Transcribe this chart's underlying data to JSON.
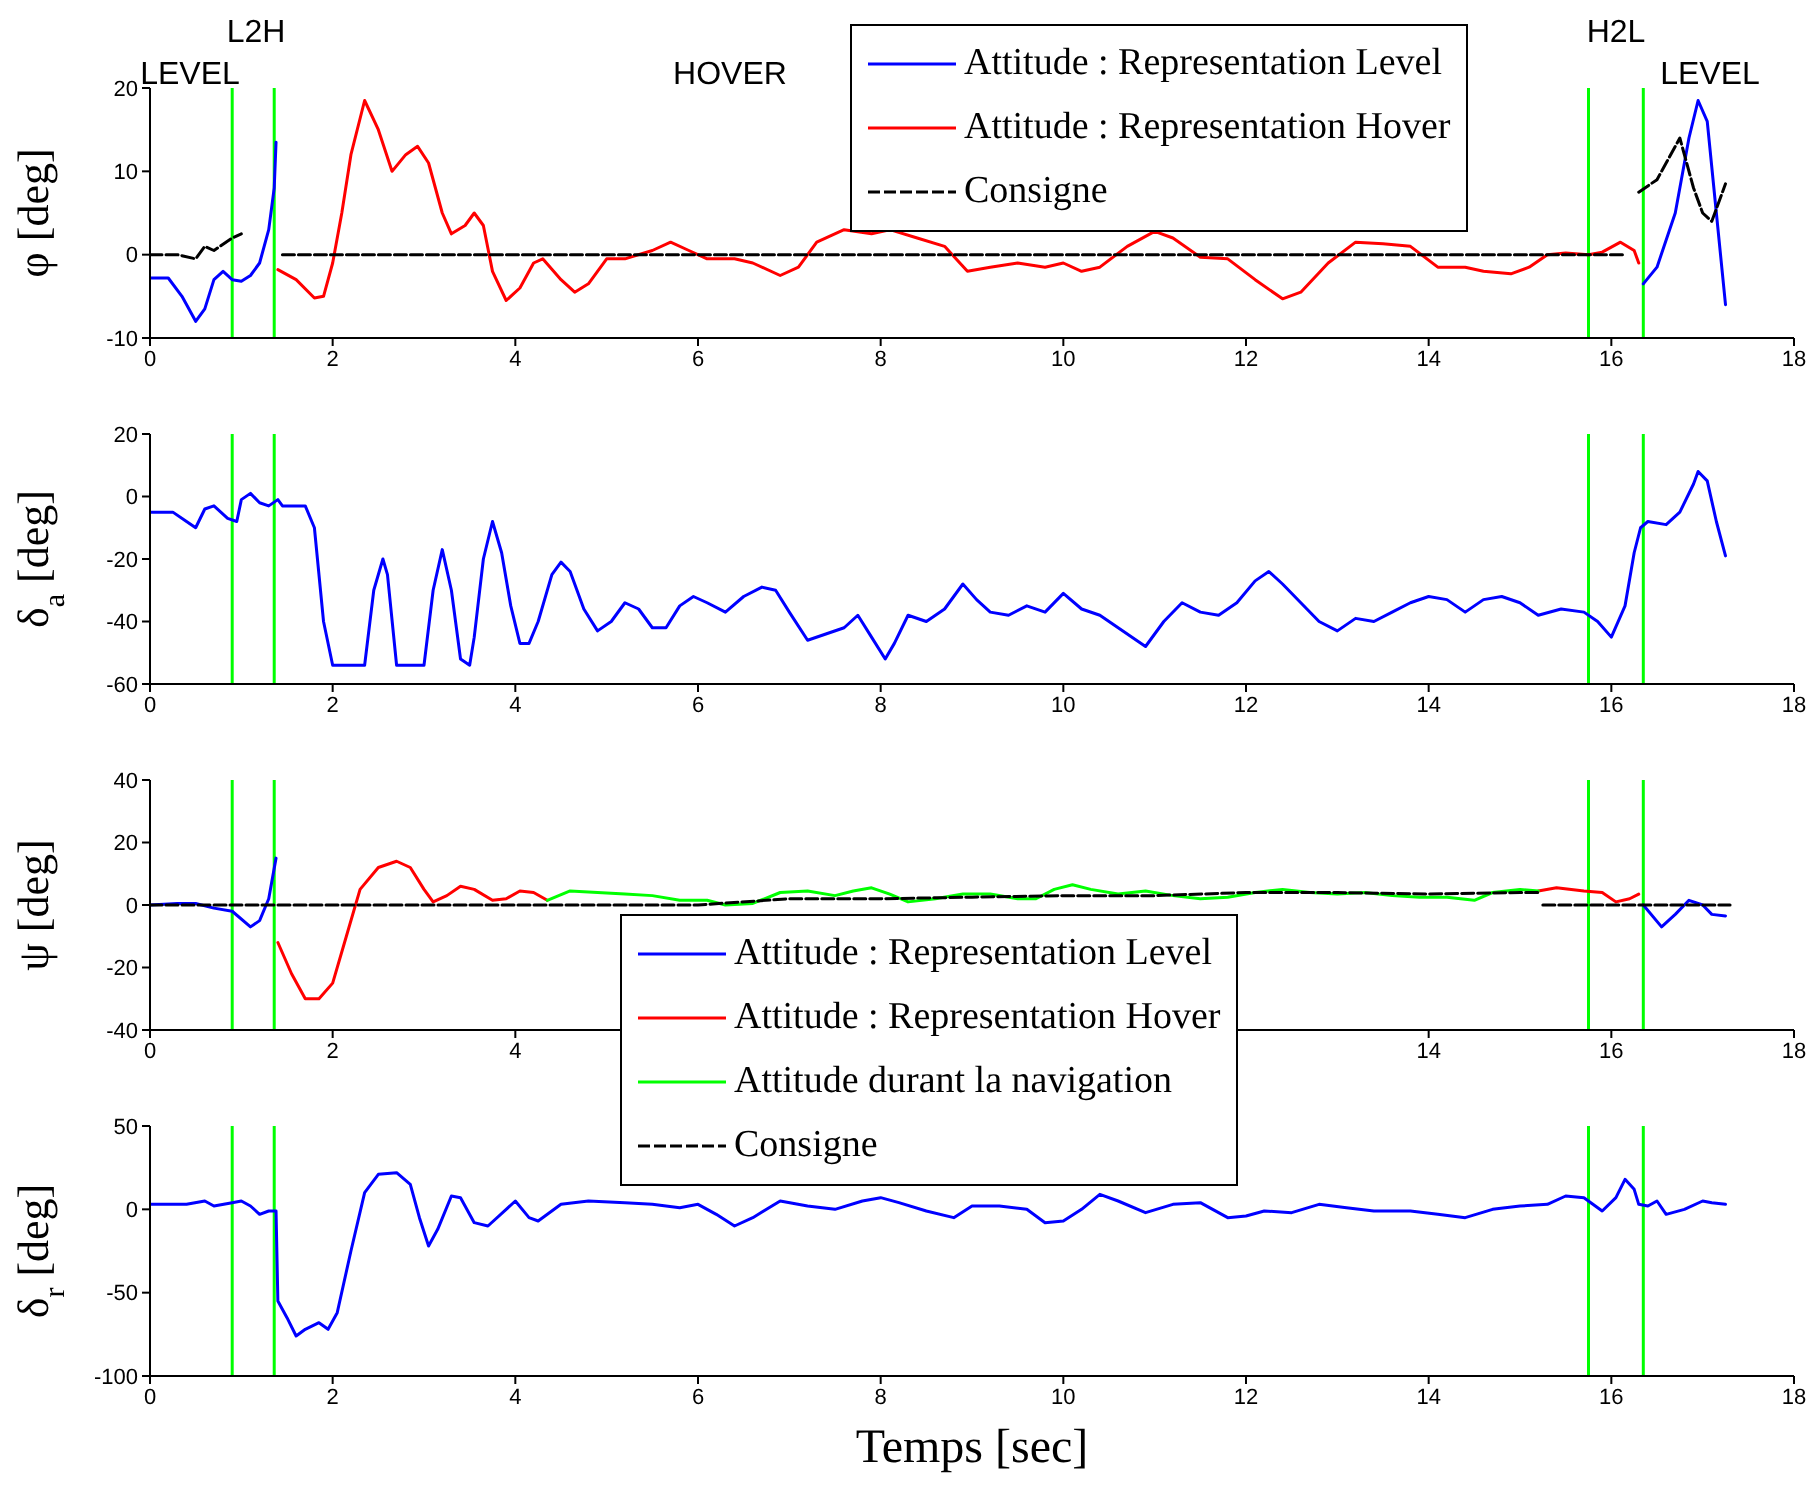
{
  "chart_data": [
    {
      "type": "line",
      "ylabel": "φ [deg]",
      "xlim": [
        0,
        18
      ],
      "xticks": [
        0,
        2,
        4,
        6,
        8,
        10,
        12,
        14,
        16,
        18
      ],
      "ylim": [
        -10,
        20
      ],
      "yticks": [
        -10,
        0,
        10,
        20
      ],
      "legend": "top right",
      "annotations": [
        "LEVEL",
        "L2H",
        "HOVER",
        "H2L",
        "LEVEL"
      ],
      "ref_lines": [
        {
          "axis": "x",
          "value": 0.9,
          "color": "#00ff00"
        },
        {
          "axis": "x",
          "value": 1.36,
          "color": "#00ff00"
        },
        {
          "axis": "x",
          "value": 15.75,
          "color": "#00ff00"
        },
        {
          "axis": "x",
          "value": 16.35,
          "color": "#00ff00"
        }
      ],
      "series": [
        {
          "name": "Attitude : Representation Level",
          "color": "#0000ff",
          "x": [
            0,
            0.2,
            0.35,
            0.5,
            0.6,
            0.7,
            0.8,
            0.9,
            1.0,
            1.1,
            1.2,
            1.3,
            1.36,
            1.38,
            8,
            16.35,
            16.5,
            16.7,
            16.85,
            16.95,
            17.05,
            17.15,
            17.25
          ],
          "values": [
            -2.8,
            -2.8,
            -5,
            -8,
            -6.5,
            -3,
            -2,
            -3,
            -3.2,
            -2.5,
            -1,
            3,
            8,
            13.5,
            null,
            -3.5,
            -1.5,
            5,
            14,
            18.5,
            16,
            5,
            -6
          ]
        },
        {
          "name": "Attitude : Representation Hover",
          "color": "#ff0000",
          "x": [
            1.4,
            1.6,
            1.8,
            1.9,
            2.0,
            2.1,
            2.2,
            2.35,
            2.5,
            2.65,
            2.8,
            2.93,
            3.05,
            3.2,
            3.3,
            3.45,
            3.55,
            3.65,
            3.75,
            3.9,
            4.05,
            4.2,
            4.3,
            4.5,
            4.65,
            4.8,
            5.0,
            5.2,
            5.5,
            5.7,
            5.9,
            6.1,
            6.4,
            6.6,
            6.9,
            7.1,
            7.3,
            7.6,
            7.9,
            8.1,
            8.4,
            8.7,
            8.95,
            9.2,
            9.5,
            9.8,
            10,
            10.2,
            10.4,
            10.7,
            11,
            11.2,
            11.5,
            11.8,
            12.1,
            12.4,
            12.6,
            12.9,
            13.2,
            13.5,
            13.8,
            14.1,
            14.4,
            14.6,
            14.9,
            15.1,
            15.3,
            15.5,
            15.75,
            15.9,
            16.1,
            16.25,
            16.3
          ],
          "values": [
            -1.8,
            -3,
            -5.2,
            -5,
            -1,
            5,
            12,
            18.5,
            15,
            10,
            12,
            13,
            11,
            5,
            2.5,
            3.5,
            5,
            3.5,
            -2,
            -5.5,
            -4,
            -1,
            -0.5,
            -3,
            -4.5,
            -3.5,
            -0.5,
            -0.5,
            0.5,
            1.5,
            0.5,
            -0.5,
            -0.5,
            -1,
            -2.5,
            -1.5,
            1.5,
            3,
            2.5,
            3,
            2,
            1,
            -2,
            -1.5,
            -1,
            -1.5,
            -1,
            -2,
            -1.5,
            1,
            2.8,
            2,
            -0.3,
            -0.5,
            -3,
            -5.3,
            -4.5,
            -1,
            1.5,
            1.3,
            1,
            -1.5,
            -1.5,
            -2,
            -2.3,
            -1.5,
            0,
            0.2,
            0,
            0.3,
            1.5,
            0.5,
            -1
          ]
        },
        {
          "name": "Consigne",
          "color": "#000000",
          "line_style": "dashed",
          "x": [
            0,
            0.3,
            0.5,
            0.6,
            0.7,
            0.9,
            1.0,
            1.2,
            1.45,
            4,
            8,
            12,
            16.15,
            16.25,
            16.3,
            16.5,
            16.6,
            16.75,
            16.9,
            17,
            17.1,
            17.25
          ],
          "values": [
            0,
            0,
            -0.5,
            1,
            0.5,
            2,
            2.5,
            null,
            0,
            0,
            0,
            0,
            0,
            null,
            7.5,
            9,
            11,
            14,
            8,
            5,
            4,
            8.5
          ]
        }
      ]
    },
    {
      "type": "line",
      "ylabel": "δ$_{a}$ [deg]",
      "xlim": [
        0,
        18
      ],
      "xticks": [
        0,
        2,
        4,
        6,
        8,
        10,
        12,
        14,
        16,
        18
      ],
      "ylim": [
        -60,
        20
      ],
      "yticks": [
        -60,
        -40,
        -20,
        0,
        20
      ],
      "ref_lines": [
        {
          "axis": "x",
          "value": 0.9,
          "color": "#00ff00"
        },
        {
          "axis": "x",
          "value": 1.36,
          "color": "#00ff00"
        },
        {
          "axis": "x",
          "value": 15.75,
          "color": "#00ff00"
        },
        {
          "axis": "x",
          "value": 16.35,
          "color": "#00ff00"
        }
      ],
      "series": [
        {
          "color": "#0000ff",
          "x": [
            0,
            0.25,
            0.4,
            0.5,
            0.6,
            0.7,
            0.85,
            0.95,
            1.0,
            1.1,
            1.2,
            1.3,
            1.4,
            1.45,
            1.7,
            1.8,
            1.9,
            2.0,
            2.35,
            2.45,
            2.55,
            2.6,
            2.7,
            3.0,
            3.1,
            3.2,
            3.3,
            3.4,
            3.5,
            3.55,
            3.65,
            3.75,
            3.85,
            3.95,
            4.05,
            4.15,
            4.25,
            4.4,
            4.5,
            4.6,
            4.75,
            4.9,
            5.05,
            5.2,
            5.35,
            5.5,
            5.65,
            5.8,
            5.95,
            6.1,
            6.3,
            6.5,
            6.7,
            6.85,
            7.0,
            7.2,
            7.4,
            7.6,
            7.75,
            7.9,
            8.05,
            8.15,
            8.3,
            8.5,
            8.7,
            8.9,
            9.05,
            9.2,
            9.4,
            9.6,
            9.8,
            10.0,
            10.2,
            10.4,
            10.6,
            10.9,
            11.1,
            11.3,
            11.5,
            11.7,
            11.9,
            12.1,
            12.25,
            12.4,
            12.6,
            12.8,
            13.0,
            13.2,
            13.4,
            13.6,
            13.8,
            14.0,
            14.2,
            14.4,
            14.6,
            14.8,
            15.0,
            15.2,
            15.45,
            15.7,
            15.85,
            16.0,
            16.15,
            16.25,
            16.32,
            16.4,
            16.6,
            16.75,
            16.9,
            16.95,
            17.05,
            17.15,
            17.25
          ],
          "values": [
            -5,
            -5,
            -8,
            -10,
            -4,
            -3,
            -7,
            -8,
            -1,
            1,
            -2,
            -3,
            -1,
            -3,
            -3,
            -10,
            -40,
            -54,
            -54,
            -30,
            -20,
            -25,
            -54,
            -54,
            -30,
            -17,
            -30,
            -52,
            -54,
            -45,
            -20,
            -8,
            -18,
            -35,
            -47,
            -47,
            -40,
            -25,
            -21,
            -24,
            -36,
            -43,
            -40,
            -34,
            -36,
            -42,
            -42,
            -35,
            -32,
            -34,
            -37,
            -32,
            -29,
            -30,
            -37,
            -46,
            -44,
            -42,
            -38,
            -45,
            -52,
            -47,
            -38,
            -40,
            -36,
            -28,
            -33,
            -37,
            -38,
            -35,
            -37,
            -31,
            -36,
            -38,
            -42,
            -48,
            -40,
            -34,
            -37,
            -38,
            -34,
            -27,
            -24,
            -28,
            -34,
            -40,
            -43,
            -39,
            -40,
            -37,
            -34,
            -32,
            -33,
            -37,
            -33,
            -32,
            -34,
            -38,
            -36,
            -37,
            -40,
            -45,
            -35,
            -18,
            -10,
            -8,
            -9,
            -5,
            4,
            8,
            5,
            -8,
            -19
          ]
        }
      ]
    },
    {
      "type": "line",
      "ylabel": "ψ [deg]",
      "xlim": [
        0,
        18
      ],
      "xticks": [
        0,
        2,
        4,
        14,
        16,
        18
      ],
      "ylim": [
        -40,
        40
      ],
      "yticks": [
        -40,
        -20,
        0,
        20,
        40
      ],
      "legend": "bottom",
      "ref_lines": [
        {
          "axis": "x",
          "value": 0.9,
          "color": "#00ff00"
        },
        {
          "axis": "x",
          "value": 1.36,
          "color": "#00ff00"
        },
        {
          "axis": "x",
          "value": 15.75,
          "color": "#00ff00"
        },
        {
          "axis": "x",
          "value": 16.35,
          "color": "#00ff00"
        }
      ],
      "series": [
        {
          "name": "Attitude : Representation Level",
          "color": "#0000ff",
          "x": [
            0,
            0.3,
            0.5,
            0.7,
            0.9,
            1.1,
            1.2,
            1.3,
            1.38,
            8,
            16.35,
            16.55,
            16.7,
            16.85,
            17.0,
            17.1,
            17.25
          ],
          "values": [
            0,
            0.5,
            0.5,
            -1,
            -2,
            -7,
            -5,
            2,
            15,
            null,
            0,
            -7,
            -3,
            1.5,
            0,
            -3,
            -3.5
          ]
        },
        {
          "name": "Attitude : Representation Hover",
          "color": "#ff0000",
          "x": [
            1.4,
            1.55,
            1.7,
            1.85,
            2.0,
            2.15,
            2.3,
            2.5,
            2.7,
            2.85,
            3.0,
            3.1,
            3.25,
            3.4,
            3.55,
            3.75,
            3.9,
            4.05,
            4.2,
            4.35,
            9,
            15.2,
            15.4,
            15.7,
            15.9,
            16.05,
            16.2,
            16.3
          ],
          "values": [
            -12,
            -22,
            -30,
            -30,
            -25,
            -10,
            5,
            12,
            14,
            12,
            5,
            1,
            3,
            6,
            5,
            1.5,
            2,
            4.5,
            4,
            1.5,
            null,
            4.5,
            5.5,
            4.5,
            4,
            1,
            2,
            3.5
          ]
        },
        {
          "name": "Attitude durant la navigation",
          "color": "#00ff00",
          "x": [
            4.35,
            4.6,
            4.9,
            5.2,
            5.5,
            5.8,
            6.1,
            6.3,
            6.6,
            6.9,
            7.2,
            7.5,
            7.7,
            7.9,
            8.1,
            8.3,
            8.6,
            8.9,
            9.2,
            9.5,
            9.7,
            9.9,
            10.1,
            10.3,
            10.6,
            10.9,
            11.2,
            11.5,
            11.8,
            12.1,
            12.4,
            12.7,
            13.0,
            13.3,
            13.6,
            13.9,
            14.2,
            14.5,
            14.7,
            15.0,
            15.2
          ],
          "values": [
            1.5,
            4.5,
            4,
            3.5,
            3,
            1.5,
            1.5,
            0,
            0.5,
            4,
            4.5,
            3,
            4.5,
            5.5,
            3.5,
            1,
            2,
            3.5,
            3.5,
            2,
            2,
            5,
            6.5,
            5,
            3.5,
            4.5,
            3,
            2,
            2.5,
            4,
            5,
            4,
            3.5,
            4,
            3,
            2.5,
            2.5,
            1.5,
            4,
            5,
            4.5
          ]
        },
        {
          "name": "Consigne",
          "color": "#000000",
          "line_style": "dashed",
          "x": [
            0,
            6,
            7,
            8,
            9,
            10,
            11,
            12,
            13,
            14,
            15,
            15.2,
            15.22,
            15.25,
            17.3
          ],
          "values": [
            0,
            0,
            2,
            2,
            2.5,
            3,
            3,
            4,
            4,
            3.5,
            4,
            4,
            null,
            0,
            0
          ]
        }
      ]
    },
    {
      "type": "line",
      "ylabel": "δ$_{r}$ [deg]",
      "xlabel": "Temps [sec]",
      "xlim": [
        0,
        18
      ],
      "xticks": [
        0,
        2,
        4,
        6,
        8,
        10,
        12,
        14,
        16,
        18
      ],
      "ylim": [
        -100,
        50
      ],
      "yticks": [
        -100,
        -50,
        0,
        50
      ],
      "ref_lines": [
        {
          "axis": "x",
          "value": 0.9,
          "color": "#00ff00"
        },
        {
          "axis": "x",
          "value": 1.36,
          "color": "#00ff00"
        },
        {
          "axis": "x",
          "value": 15.75,
          "color": "#00ff00"
        },
        {
          "axis": "x",
          "value": 16.35,
          "color": "#00ff00"
        }
      ],
      "series": [
        {
          "color": "#0000ff",
          "x": [
            0,
            0.4,
            0.6,
            0.7,
            0.9,
            1.0,
            1.1,
            1.2,
            1.3,
            1.38,
            1.4,
            1.5,
            1.6,
            1.7,
            1.85,
            1.95,
            2.05,
            2.2,
            2.35,
            2.5,
            2.7,
            2.85,
            2.95,
            3.05,
            3.15,
            3.3,
            3.4,
            3.55,
            3.7,
            3.9,
            4.0,
            4.15,
            4.25,
            4.5,
            4.8,
            5.2,
            5.5,
            5.8,
            6.0,
            6.2,
            6.4,
            6.6,
            6.9,
            7.2,
            7.5,
            7.8,
            8.0,
            8.2,
            8.5,
            8.8,
            9.0,
            9.3,
            9.6,
            9.8,
            10.0,
            10.2,
            10.4,
            10.6,
            10.9,
            11.2,
            11.5,
            11.8,
            12.0,
            12.2,
            12.5,
            12.8,
            13.1,
            13.4,
            13.8,
            14.1,
            14.4,
            14.7,
            15.0,
            15.3,
            15.5,
            15.7,
            15.9,
            16.05,
            16.15,
            16.25,
            16.3,
            16.4,
            16.5,
            16.6,
            16.8,
            17.0,
            17.1,
            17.25
          ],
          "values": [
            3,
            3,
            5,
            2,
            4,
            5,
            2,
            -3,
            -1,
            -1,
            -55,
            -65,
            -76,
            -72,
            -68,
            -72,
            -62,
            -25,
            10,
            21,
            22,
            15,
            -5,
            -22,
            -12,
            8,
            7,
            -8,
            -10,
            0,
            5,
            -5,
            -7,
            3,
            5,
            4,
            3,
            1,
            3,
            -3,
            -10,
            -5,
            5,
            2,
            0,
            5,
            7,
            4,
            -1,
            -5,
            2,
            2,
            0,
            -8,
            -7,
            0,
            9,
            5,
            -2,
            3,
            4,
            -5,
            -4,
            -1,
            -2,
            3,
            1,
            -1,
            -1,
            -3,
            -5,
            0,
            2,
            3,
            8,
            7,
            -1,
            7,
            18,
            12,
            3,
            2,
            5,
            -3,
            0,
            5,
            4,
            3
          ]
        }
      ]
    }
  ]
}
